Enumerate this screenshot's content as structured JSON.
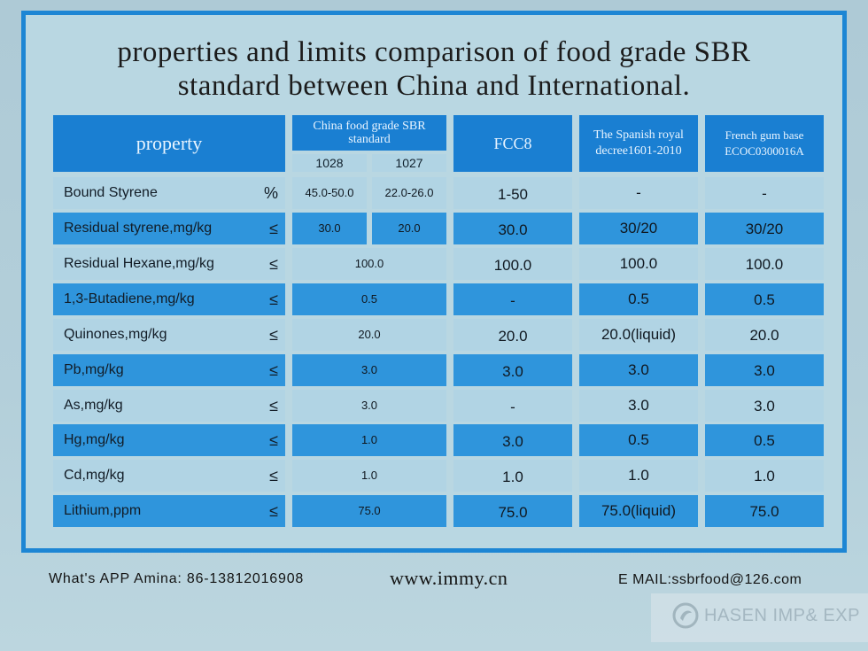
{
  "title": {
    "line1": "properties and limits comparison of food grade SBR",
    "line2": "standard between China and International."
  },
  "table": {
    "headers": {
      "property": "property",
      "china": "China food grade SBR standard",
      "china_sub_1028": "1028",
      "china_sub_1027": "1027",
      "fcc8": "FCC8",
      "spanish": "The Spanish royal decree1601-2010",
      "french": "French gum base ECOC0300016A"
    },
    "rows": [
      {
        "label": "Bound Styrene",
        "sym": "%",
        "c1028": "45.0-50.0",
        "c1027": "22.0-26.0",
        "fcc8": "1-50",
        "spanish": "-",
        "french": "-"
      },
      {
        "label": "Residual styrene,mg/kg",
        "sym": "≤",
        "c1028": "30.0",
        "c1027": "20.0",
        "fcc8": "30.0",
        "spanish": "30/20",
        "french": "30/20"
      },
      {
        "label": "Residual Hexane,mg/kg",
        "sym": "≤",
        "china": "100.0",
        "fcc8": "100.0",
        "spanish": "100.0",
        "french": "100.0"
      },
      {
        "label": "1,3-Butadiene,mg/kg",
        "sym": "≤",
        "china": "0.5",
        "fcc8": "-",
        "spanish": "0.5",
        "french": "0.5"
      },
      {
        "label": "Quinones,mg/kg",
        "sym": "≤",
        "china": "20.0",
        "fcc8": "20.0",
        "spanish": "20.0(liquid)",
        "french": "20.0"
      },
      {
        "label": "Pb,mg/kg",
        "sym": "≤",
        "china": "3.0",
        "fcc8": "3.0",
        "spanish": "3.0",
        "french": "3.0"
      },
      {
        "label": "As,mg/kg",
        "sym": "≤",
        "china": "3.0",
        "fcc8": "-",
        "spanish": "3.0",
        "french": "3.0"
      },
      {
        "label": "Hg,mg/kg",
        "sym": "≤",
        "china": "1.0",
        "fcc8": "3.0",
        "spanish": "0.5",
        "french": "0.5"
      },
      {
        "label": "Cd,mg/kg",
        "sym": "≤",
        "china": "1.0",
        "fcc8": "1.0",
        "spanish": "1.0",
        "french": "1.0"
      },
      {
        "label": "Lithium,ppm",
        "sym": "≤",
        "china": "75.0",
        "fcc8": "75.0",
        "spanish": "75.0(liquid)",
        "french": "75.0"
      }
    ]
  },
  "footer": {
    "whatsapp": "What's APP Amina: 86-13812016908",
    "website": "www.immy.cn",
    "email": "E MAIL:ssbrfood@126.com"
  },
  "watermark": {
    "text": "HASEN IMP& EXP"
  },
  "colors": {
    "border": "#1d86d4",
    "header": "#1a7fd2",
    "row_blue": "#2f95dc",
    "row_pale": "#b1d4e4"
  }
}
